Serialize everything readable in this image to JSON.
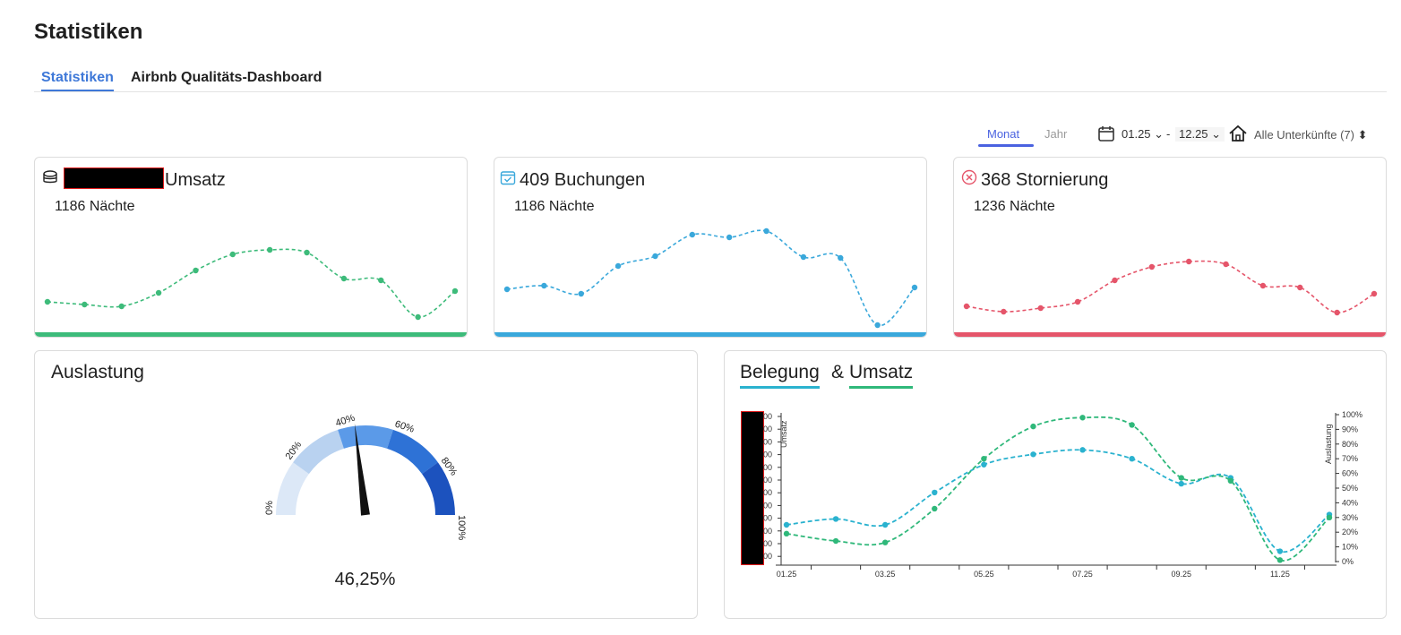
{
  "page": {
    "title": "Statistiken"
  },
  "tabs": [
    {
      "label": "Statistiken",
      "active": true
    },
    {
      "label": "Airbnb Qualitäts-Dashboard",
      "active": false
    }
  ],
  "toolbar": {
    "period_month": "Monat",
    "period_year": "Jahr",
    "date_from": "01.25",
    "date_separator": "-",
    "date_to": "12.25",
    "property_filter": "Alle Unterkünfte (7)"
  },
  "cards": {
    "revenue": {
      "title": "Umsatz",
      "subtitle": "1186 Nächte",
      "color": "#3dbb7a",
      "icon": "coins-icon"
    },
    "bookings": {
      "title": "409 Buchungen",
      "subtitle": "1186 Nächte",
      "color": "#3aa8db",
      "icon": "calendar-check-icon"
    },
    "cancellations": {
      "title": "368 Stornierung",
      "subtitle": "1236 Nächte",
      "color": "#e5556a",
      "icon": "cancel-circle-icon"
    }
  },
  "sparklines": {
    "revenue": [
      22,
      19,
      17,
      32,
      57,
      75,
      80,
      77,
      48,
      46,
      5,
      34
    ],
    "bookings": [
      36,
      40,
      31,
      62,
      73,
      97,
      94,
      101,
      72,
      71,
      -4,
      38
    ],
    "cancellations": [
      17,
      11,
      15,
      22,
      46,
      61,
      67,
      64,
      40,
      38,
      10,
      31
    ]
  },
  "occupancy": {
    "title": "Auslastung",
    "value_label": "46,25%",
    "value": 46.25,
    "gauge_ticks": [
      "0%",
      "20%",
      "40%",
      "60%",
      "80%",
      "100%"
    ],
    "segment_colors": [
      "#dce8f7",
      "#b9d2f0",
      "#5b9ae8",
      "#2e72d6",
      "#1c52be"
    ]
  },
  "combo": {
    "legend": [
      {
        "label": "Belegung",
        "color": "#2ab2cf"
      },
      {
        "label": "&",
        "color": ""
      },
      {
        "label": "Umsatz",
        "color": "#2fb87a"
      }
    ]
  },
  "chart_data": {
    "type": "line",
    "x": [
      "01.25",
      "02.25",
      "03.25",
      "04.25",
      "05.25",
      "06.25",
      "07.25",
      "08.25",
      "09.25",
      "10.25",
      "11.25",
      "12.25"
    ],
    "x_tick_labels": [
      "01.25",
      "03.25",
      "05.25",
      "07.25",
      "09.25",
      "11.25"
    ],
    "series": [
      {
        "name": "Belegung",
        "axis": "right",
        "color": "#2ab2cf",
        "values": [
          25,
          29,
          25,
          47,
          66,
          73,
          76,
          70,
          53,
          57,
          7,
          32
        ]
      },
      {
        "name": "Umsatz",
        "axis": "left",
        "color": "#2fb87a",
        "values": [
          19,
          14,
          13,
          36,
          70,
          92,
          98,
          93,
          57,
          55,
          1,
          30
        ]
      }
    ],
    "ylabel_left": "Umsatz",
    "ylabel_right": "Auslastung",
    "y_right_ticks": [
      "100%",
      "90%",
      "80%",
      "70%",
      "60%",
      "50%",
      "40%",
      "30%",
      "20%",
      "10%",
      "0%"
    ],
    "y_left_tick_suffix": [
      "00",
      "00",
      "00",
      "00",
      "00",
      "00",
      "00",
      "00",
      "00",
      "00",
      "00",
      "00"
    ],
    "ylim": [
      0,
      100
    ]
  }
}
